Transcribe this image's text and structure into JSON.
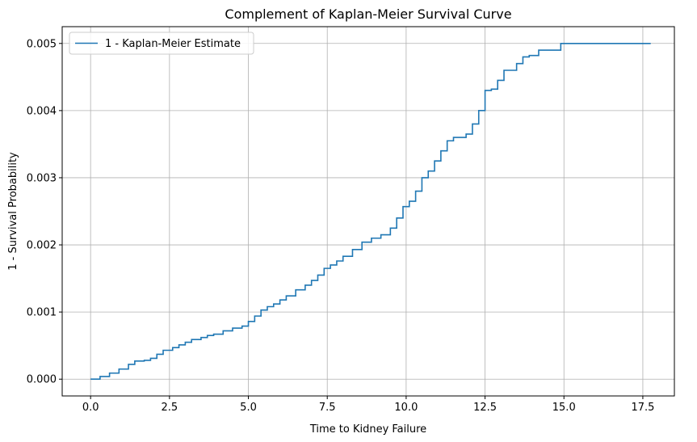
{
  "chart_data": {
    "type": "line",
    "title": "Complement of Kaplan-Meier Survival Curve",
    "xlabel": "Time to Kidney Failure",
    "ylabel": "1 - Survival Probability",
    "xlim": [
      -0.9,
      18.5
    ],
    "ylim": [
      -0.00025,
      0.00525
    ],
    "xticks": [
      0.0,
      2.5,
      5.0,
      7.5,
      10.0,
      12.5,
      15.0,
      17.5
    ],
    "xtick_labels": [
      "0.0",
      "2.5",
      "5.0",
      "7.5",
      "10.0",
      "12.5",
      "15.0",
      "17.5"
    ],
    "yticks": [
      0.0,
      0.001,
      0.002,
      0.003,
      0.004,
      0.005
    ],
    "ytick_labels": [
      "0.000",
      "0.001",
      "0.002",
      "0.003",
      "0.004",
      "0.005"
    ],
    "grid": true,
    "legend_position": "top-left",
    "series": [
      {
        "name": "1 - Kaplan-Meier Estimate",
        "color": "#1f77b4",
        "x": [
          0.0,
          0.3,
          0.6,
          0.9,
          1.2,
          1.4,
          1.7,
          1.9,
          2.1,
          2.3,
          2.6,
          2.8,
          3.0,
          3.2,
          3.5,
          3.7,
          3.9,
          4.2,
          4.5,
          4.8,
          5.0,
          5.2,
          5.4,
          5.6,
          5.8,
          6.0,
          6.2,
          6.5,
          6.8,
          7.0,
          7.2,
          7.4,
          7.6,
          7.8,
          8.0,
          8.3,
          8.6,
          8.9,
          9.2,
          9.5,
          9.7,
          9.9,
          10.1,
          10.3,
          10.5,
          10.7,
          10.9,
          11.1,
          11.3,
          11.5,
          11.7,
          11.9,
          12.1,
          12.3,
          12.5,
          12.7,
          12.9,
          13.1,
          13.3,
          13.5,
          13.7,
          13.9,
          14.2,
          14.5,
          14.9,
          15.2,
          17.75
        ],
        "y": [
          0.0,
          4e-05,
          9e-05,
          0.00015,
          0.00022,
          0.00027,
          0.00028,
          0.00031,
          0.00037,
          0.00043,
          0.00047,
          0.00051,
          0.00055,
          0.00059,
          0.00062,
          0.00065,
          0.00067,
          0.00072,
          0.00076,
          0.00079,
          0.00086,
          0.00094,
          0.00103,
          0.00108,
          0.00112,
          0.00118,
          0.00124,
          0.00133,
          0.0014,
          0.00147,
          0.00155,
          0.00165,
          0.0017,
          0.00176,
          0.00183,
          0.00193,
          0.00204,
          0.0021,
          0.00215,
          0.00225,
          0.0024,
          0.00257,
          0.00265,
          0.0028,
          0.003,
          0.0031,
          0.00325,
          0.0034,
          0.00355,
          0.0036,
          0.0036,
          0.00365,
          0.0038,
          0.004,
          0.0043,
          0.00432,
          0.00445,
          0.0046,
          0.0046,
          0.0047,
          0.0048,
          0.00482,
          0.0049,
          0.0049,
          0.005,
          0.005,
          0.005
        ]
      }
    ]
  }
}
